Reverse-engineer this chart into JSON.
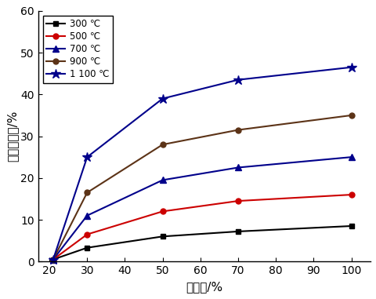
{
  "x": [
    21,
    30,
    50,
    70,
    100
  ],
  "series": [
    {
      "label": "300 ℃",
      "color": "#000000",
      "marker": "s",
      "markersize": 5,
      "values": [
        0.5,
        3.3,
        6.0,
        7.2,
        8.5
      ]
    },
    {
      "label": "500 ℃",
      "color": "#cc0000",
      "marker": "o",
      "markersize": 5,
      "values": [
        0.5,
        6.5,
        12.0,
        14.5,
        16.0
      ]
    },
    {
      "label": "700 ℃",
      "color": "#00008B",
      "marker": "^",
      "markersize": 6,
      "values": [
        0.5,
        11.0,
        19.5,
        22.5,
        25.0
      ]
    },
    {
      "label": "900 ℃",
      "color": "#5C3317",
      "marker": "o",
      "markersize": 5,
      "values": [
        0.5,
        16.5,
        28.0,
        31.5,
        35.0
      ]
    },
    {
      "label": "1 100 ℃",
      "color": "#00008B",
      "marker": "*",
      "markersize": 9,
      "values": [
        0.5,
        25.0,
        39.0,
        43.5,
        46.5
      ]
    }
  ],
  "xlabel": "富氧率/%",
  "ylabel": "燃料节约率/%",
  "xlim": [
    17,
    105
  ],
  "ylim": [
    0,
    60
  ],
  "xticks": [
    20,
    30,
    40,
    50,
    60,
    70,
    80,
    90,
    100
  ],
  "yticks": [
    0,
    10,
    20,
    30,
    40,
    50,
    60
  ],
  "figsize": [
    4.81,
    3.81
  ],
  "dpi": 100
}
